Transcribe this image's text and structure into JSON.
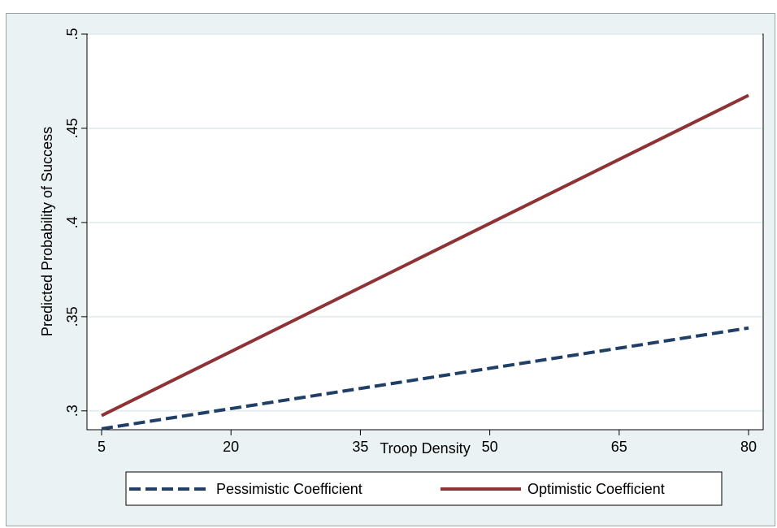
{
  "chart_data": {
    "type": "line",
    "title": "",
    "xlabel": "Troop Density",
    "ylabel": "Predicted Probability of Success",
    "xlim": [
      5,
      80
    ],
    "ylim": [
      0.29,
      0.5
    ],
    "x_ticks": [
      5,
      20,
      35,
      50,
      65,
      80
    ],
    "x_tick_labels": [
      "5",
      "20",
      "35",
      "50",
      "65",
      "80"
    ],
    "y_ticks": [
      0.3,
      0.35,
      0.4,
      0.45,
      0.5
    ],
    "y_tick_labels": [
      ".3",
      ".35",
      ".4",
      ".45",
      ".5"
    ],
    "grid": true,
    "legend_position": "bottom",
    "series": [
      {
        "name": "Pessimistic Coefficient",
        "style": "dashed",
        "color": "#1f3f66",
        "x": [
          5,
          80
        ],
        "y": [
          0.2905,
          0.344
        ]
      },
      {
        "name": "Optimistic Coefficient",
        "style": "solid",
        "color": "#8f3236",
        "x": [
          5,
          80
        ],
        "y": [
          0.2975,
          0.4675
        ]
      }
    ]
  },
  "colors": {
    "background": "#eaf2f3",
    "plot_area": "#ffffff",
    "grid": "#e7eef0"
  }
}
